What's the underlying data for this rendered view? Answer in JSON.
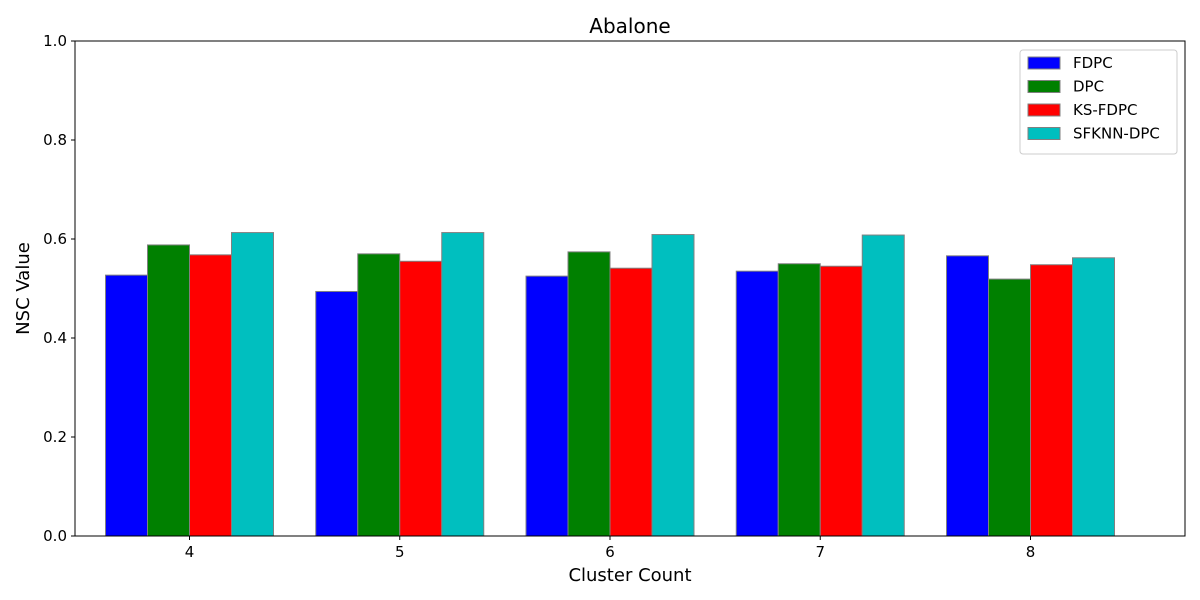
{
  "chart_data": {
    "type": "bar",
    "title": "Abalone",
    "xlabel": "Cluster Count",
    "ylabel": "NSC Value",
    "categories": [
      "4",
      "5",
      "6",
      "7",
      "8"
    ],
    "ylim": [
      0,
      1.0
    ],
    "yticks": [
      "0.0",
      "0.2",
      "0.4",
      "0.6",
      "0.8",
      "1.0"
    ],
    "grid": false,
    "legend_position": "top-right",
    "series": [
      {
        "name": "FDPC",
        "color": "#0000ff",
        "values": [
          0.527,
          0.494,
          0.525,
          0.535,
          0.566
        ]
      },
      {
        "name": "DPC",
        "color": "#008000",
        "values": [
          0.588,
          0.57,
          0.574,
          0.55,
          0.519
        ]
      },
      {
        "name": "KS-FDPC",
        "color": "#ff0000",
        "values": [
          0.568,
          0.555,
          0.541,
          0.545,
          0.548
        ]
      },
      {
        "name": "SFKNN-DPC",
        "color": "#00bfbf",
        "values": [
          0.613,
          0.613,
          0.609,
          0.608,
          0.562
        ]
      }
    ]
  }
}
